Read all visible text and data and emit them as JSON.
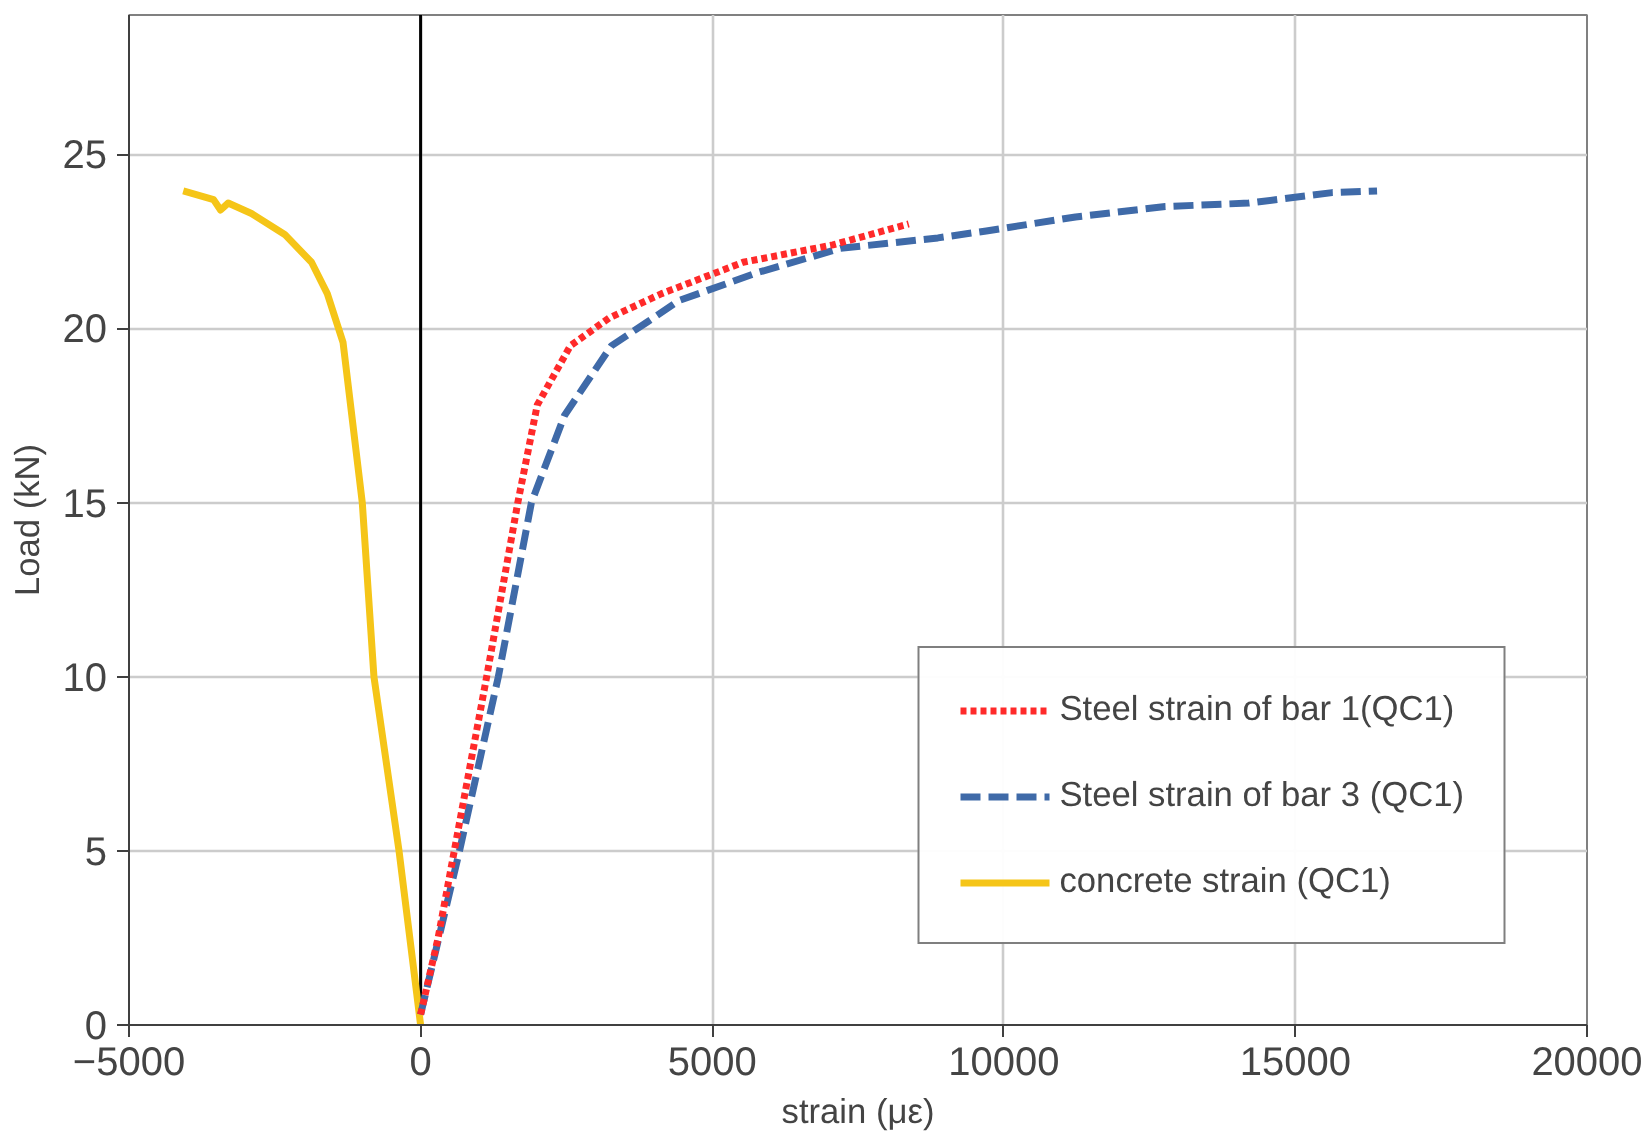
{
  "chart_data": {
    "type": "line",
    "xlabel": "strain (με)",
    "ylabel": "Load (kN)",
    "xlim": [
      -5000,
      20000
    ],
    "ylim": [
      0,
      29
    ],
    "xticks": [
      -5000,
      0,
      5000,
      10000,
      15000,
      20000
    ],
    "yticks": [
      0,
      5,
      10,
      15,
      20,
      25
    ],
    "grid": true,
    "legend": "bottom right",
    "ref_lines": [
      {
        "axis": "x",
        "value": 0,
        "color": "#000000",
        "line_style": "solid"
      }
    ],
    "series": [
      {
        "name": "Steel strain of bar 1(QC1)",
        "color": "#ff2a2a",
        "line_style": "dotted",
        "x": [
          0,
          300,
          1133,
          1667,
          2000,
          2567,
          3233,
          4133,
          5530,
          7070,
          8370
        ],
        "values": [
          0.3,
          2.5,
          10,
          15,
          17.8,
          19.5,
          20.3,
          21,
          21.9,
          22.4,
          23
        ]
      },
      {
        "name": "Steel strain of bar 3 (QC1)",
        "color": "#3f6aa8",
        "line_style": "dashed",
        "x": [
          0,
          667,
          1333,
          1900,
          2467,
          3270,
          3900,
          4430,
          5770,
          7200,
          8870,
          9700,
          11230,
          12770,
          14200,
          15630,
          16400
        ],
        "values": [
          0.3,
          5,
          10,
          15,
          17.5,
          19.5,
          20.2,
          20.8,
          21.6,
          22.3,
          22.6,
          22.8,
          23.2,
          23.5,
          23.6,
          23.9,
          23.95
        ]
      },
      {
        "name": "concrete strain (QC1)",
        "color": "#f5c518",
        "line_style": "solid",
        "x": [
          0,
          -370,
          -800,
          -1000,
          -1330,
          -1600,
          -1870,
          -2330,
          -2900,
          -3300,
          -3430,
          -3550,
          -4070
        ],
        "values": [
          0,
          5,
          10,
          15,
          19.6,
          21,
          21.9,
          22.7,
          23.3,
          23.6,
          23.4,
          23.7,
          23.95
        ]
      }
    ]
  }
}
